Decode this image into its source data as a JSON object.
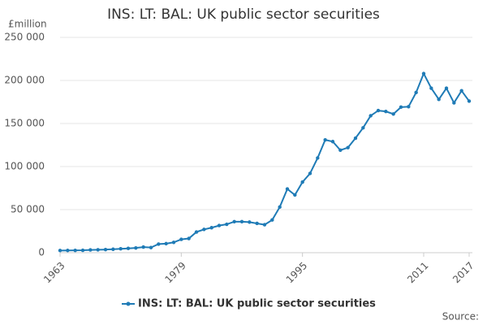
{
  "chart_data": {
    "type": "line",
    "title": "INS: LT: BAL: UK public sector securities",
    "y_unit": "£million",
    "source": "Source:",
    "x": [
      1963,
      1964,
      1965,
      1966,
      1967,
      1968,
      1969,
      1970,
      1971,
      1972,
      1973,
      1974,
      1975,
      1976,
      1977,
      1978,
      1979,
      1980,
      1981,
      1982,
      1983,
      1984,
      1985,
      1986,
      1987,
      1988,
      1989,
      1990,
      1991,
      1992,
      1993,
      1994,
      1995,
      1996,
      1997,
      1998,
      1999,
      2000,
      2001,
      2002,
      2003,
      2004,
      2005,
      2006,
      2007,
      2008,
      2009,
      2010,
      2011,
      2012,
      2013,
      2014,
      2015,
      2016,
      2017
    ],
    "series": [
      {
        "name": "INS: LT: BAL: UK public sector securities",
        "color": "#1f7bb6",
        "values": [
          2500,
          2600,
          2700,
          2800,
          3200,
          3400,
          3600,
          4000,
          4500,
          5000,
          5500,
          6500,
          6000,
          10000,
          10500,
          12000,
          15500,
          16500,
          24000,
          27000,
          29000,
          31500,
          33000,
          36000,
          36000,
          35500,
          34000,
          32500,
          38000,
          53000,
          74000,
          67000,
          82000,
          92000,
          110000,
          131000,
          129000,
          119000,
          122000,
          133000,
          145000,
          159000,
          165000,
          164000,
          161000,
          169000,
          169500,
          186000,
          208000,
          191000,
          178000,
          191000,
          174000,
          188000,
          176000
        ]
      }
    ],
    "xlim": [
      1963,
      2017
    ],
    "xticks": [
      1963,
      1979,
      1995,
      2011,
      2017
    ],
    "ylim": [
      0,
      250000
    ],
    "yticks": [
      0,
      {
        "value": 50000,
        "label": "50 000"
      },
      {
        "value": 100000,
        "label": "100 000"
      },
      {
        "value": 150000,
        "label": "150 000"
      },
      {
        "value": 200000,
        "label": "200 000"
      },
      {
        "value": 250000,
        "label": "250 000"
      }
    ],
    "grid": true,
    "legend": "bottom"
  }
}
